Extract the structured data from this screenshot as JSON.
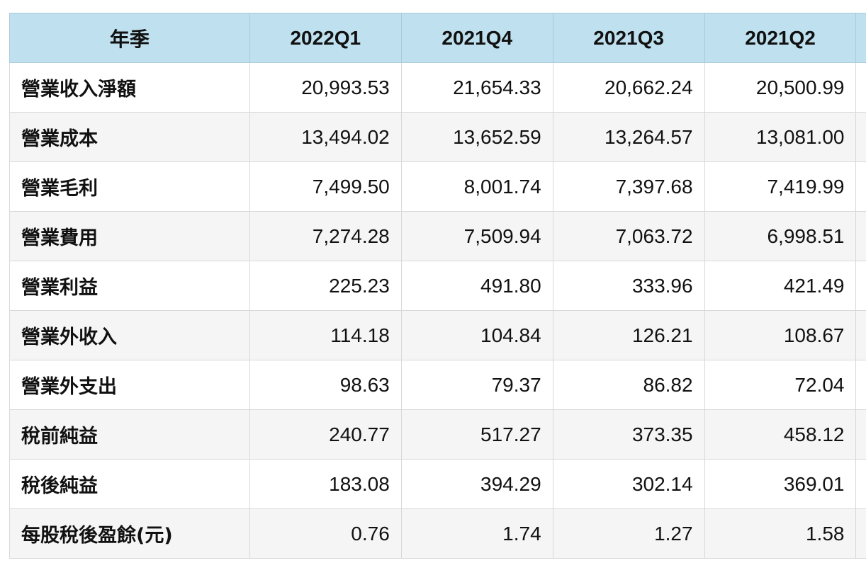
{
  "table": {
    "header": [
      "年季",
      "2022Q1",
      "2021Q4",
      "2021Q3",
      "2021Q2"
    ],
    "rows": [
      {
        "label": "營業收入淨額",
        "values": [
          "20,993.53",
          "21,654.33",
          "20,662.24",
          "20,500.99"
        ]
      },
      {
        "label": "營業成本",
        "values": [
          "13,494.02",
          "13,652.59",
          "13,264.57",
          "13,081.00"
        ]
      },
      {
        "label": "營業毛利",
        "values": [
          "7,499.50",
          "8,001.74",
          "7,397.68",
          "7,419.99"
        ]
      },
      {
        "label": "營業費用",
        "values": [
          "7,274.28",
          "7,509.94",
          "7,063.72",
          "6,998.51"
        ]
      },
      {
        "label": "營業利益",
        "values": [
          "225.23",
          "491.80",
          "333.96",
          "421.49"
        ]
      },
      {
        "label": "營業外收入",
        "values": [
          "114.18",
          "104.84",
          "126.21",
          "108.67"
        ]
      },
      {
        "label": "營業外支出",
        "values": [
          "98.63",
          "79.37",
          "86.82",
          "72.04"
        ]
      },
      {
        "label": "稅前純益",
        "values": [
          "240.77",
          "517.27",
          "373.35",
          "458.12"
        ]
      },
      {
        "label": "稅後純益",
        "values": [
          "183.08",
          "394.29",
          "302.14",
          "369.01"
        ]
      },
      {
        "label": "每股稅後盈餘(元)",
        "values": [
          "0.76",
          "1.74",
          "1.27",
          "1.58"
        ]
      }
    ]
  },
  "colors": {
    "header_bg": "#bfe0ef",
    "row_alt_bg": "#f5f5f5",
    "border": "#d8d8d8"
  }
}
